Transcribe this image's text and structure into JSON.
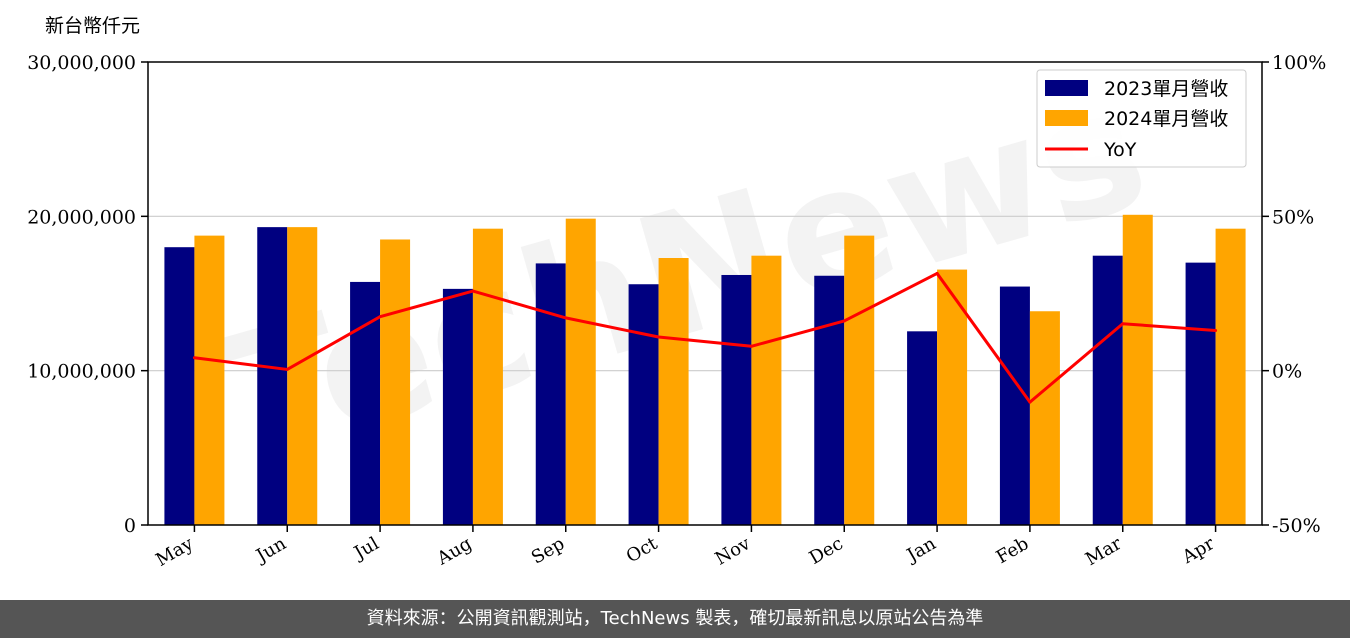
{
  "chart_data": {
    "type": "bar",
    "unit_label": "新台幣仟元",
    "categories": [
      "May",
      "Jun",
      "Jul",
      "Aug",
      "Sep",
      "Oct",
      "Nov",
      "Dec",
      "Jan",
      "Feb",
      "Mar",
      "Apr"
    ],
    "series": [
      {
        "name": "2023單月營收",
        "color": "#000080",
        "values": [
          18000000,
          19300000,
          15750000,
          15300000,
          16950000,
          15600000,
          16200000,
          16150000,
          12550000,
          15450000,
          17450000,
          17000000
        ]
      },
      {
        "name": "2024單月營收",
        "color": "#FFA500",
        "values": [
          18750000,
          19300000,
          18500000,
          19200000,
          19850000,
          17300000,
          17450000,
          18750000,
          16550000,
          13850000,
          20100000,
          19200000
        ]
      }
    ],
    "line_series": {
      "name": "YoY",
      "color": "#FF0000",
      "axis": "right",
      "values": [
        4.2,
        0.4,
        17.5,
        25.8,
        17.1,
        10.9,
        7.9,
        16.1,
        31.5,
        -10.2,
        15.2,
        13.0
      ]
    },
    "ylim": [
      0,
      30000000
    ],
    "yticks": [
      "0",
      "10,000,000",
      "20,000,000",
      "30,000,000"
    ],
    "y2lim": [
      -50,
      100
    ],
    "y2ticks": [
      "-50%",
      "0%",
      "50%",
      "100%"
    ],
    "grid": "horizontal",
    "legend_position": "top-right",
    "watermark": "TechNews"
  },
  "footer": {
    "text": "資料來源：公開資訊觀測站，TechNews 製表，確切最新訊息以原站公告為準"
  }
}
